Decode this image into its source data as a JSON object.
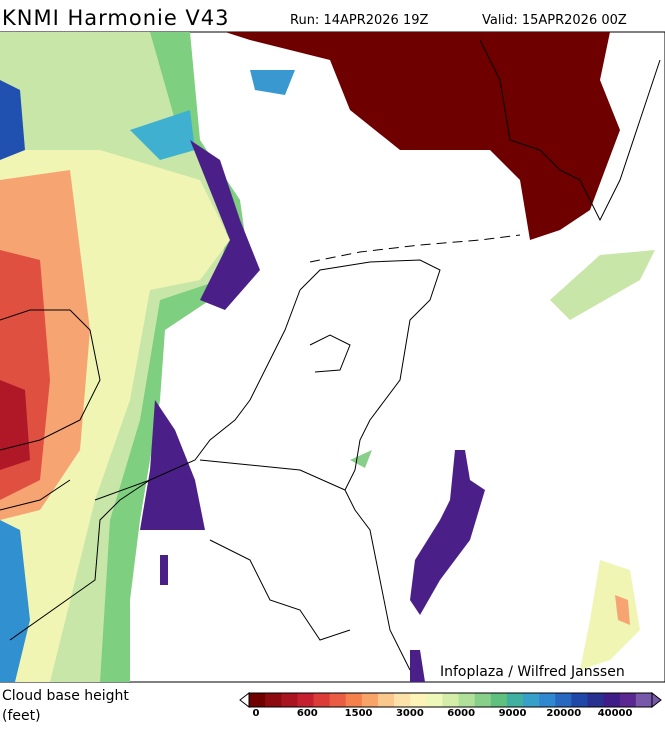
{
  "header": {
    "title": "KNMI Harmonie V43",
    "run": "Run: 14APR2026 19Z",
    "valid": "Valid: 15APR2026 00Z"
  },
  "map": {
    "credit": "Infoplaza / Wilfred Janssen"
  },
  "legend": {
    "title": "Cloud base height",
    "unit": "(feet)",
    "labels": [
      "0",
      "600",
      "1500",
      "3000",
      "6000",
      "9000",
      "20000",
      "40000"
    ],
    "colors": [
      "#6e0000",
      "#8c0a10",
      "#a81420",
      "#c42030",
      "#dc3c38",
      "#ea5c44",
      "#f4804e",
      "#f8a468",
      "#fac88c",
      "#fce2a8",
      "#fcf4b8",
      "#eef8b8",
      "#d4eeaa",
      "#b0e09a",
      "#88d08a",
      "#60c080",
      "#40b0a0",
      "#38a0c8",
      "#3088d0",
      "#2868c0",
      "#2048a8",
      "#283090",
      "#401c88",
      "#5a2890",
      "#7858a8"
    ]
  }
}
